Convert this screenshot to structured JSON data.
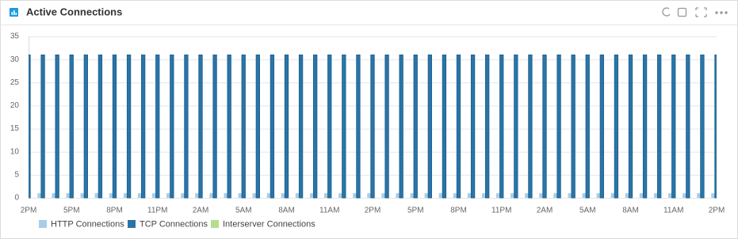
{
  "chart_data": {
    "type": "bar",
    "title": "Active Connections",
    "categories": [
      "2PM",
      null,
      null,
      "5PM",
      null,
      null,
      "8PM",
      null,
      null,
      "11PM",
      null,
      null,
      "2AM",
      null,
      null,
      "5AM",
      null,
      null,
      "8AM",
      null,
      null,
      "11AM",
      null,
      null,
      "2PM",
      null,
      null,
      "5PM",
      null,
      null,
      "8PM",
      null,
      null,
      "11PM",
      null,
      null,
      "2AM",
      null,
      null,
      "5AM",
      null,
      null,
      "8AM",
      null,
      null,
      "11AM",
      null,
      null,
      "2PM"
    ],
    "series": [
      {
        "name": "HTTP Connections",
        "color": "#a9cde8",
        "values": [
          1,
          1,
          1,
          1,
          1,
          1,
          1,
          1,
          1,
          1,
          1,
          1,
          1,
          1,
          1,
          1,
          1,
          1,
          1,
          1,
          1,
          1,
          1,
          1,
          1,
          1,
          1,
          1,
          1,
          1,
          1,
          1,
          1,
          1,
          1,
          1,
          1,
          1,
          1,
          1,
          1,
          1,
          1,
          1,
          1,
          1,
          1,
          1,
          1
        ]
      },
      {
        "name": "TCP Connections",
        "color": "#2a74a8",
        "values": [
          31,
          31,
          31,
          31,
          31,
          31,
          31,
          31,
          31,
          31,
          31,
          31,
          31,
          31,
          31,
          31,
          31,
          31,
          31,
          31,
          31,
          31,
          31,
          31,
          31,
          31,
          31,
          31,
          31,
          31,
          31,
          31,
          31,
          31,
          31,
          31,
          31,
          31,
          31,
          31,
          31,
          31,
          31,
          31,
          31,
          31,
          31,
          31,
          31
        ]
      },
      {
        "name": "Interserver Connections",
        "color": "#b3de8a",
        "values": [
          0,
          0,
          0,
          0,
          0,
          0,
          0,
          0,
          0,
          0,
          0,
          0,
          0,
          0,
          0,
          0,
          0,
          0,
          0,
          0,
          0,
          0,
          0,
          0,
          0,
          0,
          0,
          0,
          0,
          0,
          0,
          0,
          0,
          0,
          0,
          0,
          0,
          0,
          0,
          0,
          0,
          0,
          0,
          0,
          0,
          0,
          0,
          0,
          0
        ]
      }
    ],
    "ylim": [
      0,
      35
    ],
    "yticks": [
      0,
      5,
      10,
      15,
      20,
      25,
      30,
      35
    ],
    "grid": true
  }
}
